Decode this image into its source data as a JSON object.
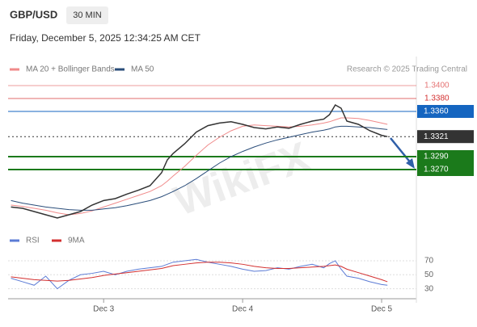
{
  "header": {
    "symbol": "GBP/USD",
    "timeframe": "30 MIN",
    "datetime": "Friday, December 5, 2025 12:34:25 AM CET",
    "source": "Research © 2025 Trading Central",
    "watermark": "WikiFX"
  },
  "chart_data": [
    {
      "type": "line",
      "x": [
        8,
        10,
        12,
        14,
        16,
        18,
        20,
        22,
        24,
        26,
        28,
        30,
        32,
        34,
        35,
        36,
        38,
        40,
        42,
        44,
        46,
        48,
        50,
        52,
        54,
        56,
        58,
        60,
        62,
        63,
        64,
        65,
        66,
        68,
        70,
        72,
        73
      ],
      "close": [
        1.3212,
        1.321,
        1.3205,
        1.32,
        1.3195,
        1.32,
        1.3205,
        1.3215,
        1.3222,
        1.3225,
        1.3232,
        1.3238,
        1.3245,
        1.3265,
        1.3285,
        1.3295,
        1.331,
        1.3328,
        1.3338,
        1.3342,
        1.3344,
        1.334,
        1.3335,
        1.3333,
        1.3336,
        1.3334,
        1.334,
        1.3345,
        1.3348,
        1.3355,
        1.337,
        1.3365,
        1.3345,
        1.334,
        1.333,
        1.3323,
        1.3321
      ],
      "close_color": "#333333",
      "series": [
        {
          "name": "MA 20 + Bollinger Bands",
          "color": "#f08a8a",
          "values": [
            1.3215,
            1.3213,
            1.321,
            1.3207,
            1.3203,
            1.32,
            1.3202,
            1.3206,
            1.3212,
            1.3218,
            1.3224,
            1.323,
            1.3236,
            1.3245,
            1.3252,
            1.326,
            1.3275,
            1.3292,
            1.3308,
            1.332,
            1.333,
            1.3337,
            1.3339,
            1.3338,
            1.3337,
            1.3336,
            1.3337,
            1.3339,
            1.3342,
            1.3344,
            1.3347,
            1.335,
            1.335,
            1.3349,
            1.3346,
            1.3342,
            1.334
          ]
        },
        {
          "name": "MA 50",
          "color": "#2a4d7a",
          "values": [
            1.3222,
            1.3218,
            1.3215,
            1.3212,
            1.321,
            1.3208,
            1.3207,
            1.3207,
            1.3209,
            1.3211,
            1.3214,
            1.3218,
            1.3222,
            1.3228,
            1.3232,
            1.3236,
            1.3245,
            1.3256,
            1.3268,
            1.328,
            1.329,
            1.3298,
            1.3305,
            1.3311,
            1.3316,
            1.332,
            1.3324,
            1.3328,
            1.3331,
            1.3333,
            1.3336,
            1.3337,
            1.3337,
            1.3336,
            1.3335,
            1.3333,
            1.3332
          ]
        }
      ],
      "xlim": [
        7.5,
        78
      ],
      "ylim": [
        1.3155,
        1.3445
      ],
      "levels": [
        {
          "value": 1.34,
          "label": "1.3400",
          "color": "#e57373",
          "style": "text",
          "width": 1
        },
        {
          "value": 1.338,
          "label": "1.3380",
          "color": "#d32f2f",
          "style": "text",
          "width": 1
        },
        {
          "value": 1.336,
          "label": "1.3360",
          "color": "#1565c0",
          "style": "box",
          "width": 1
        },
        {
          "value": 1.3321,
          "label": "1.3321",
          "color": "#333333",
          "style": "dotted",
          "width": 1
        },
        {
          "value": 1.329,
          "label": "1.3290",
          "color": "#1b7a1b",
          "style": "box",
          "width": 2
        },
        {
          "value": 1.327,
          "label": "1.3270",
          "color": "#1b7a1b",
          "style": "box",
          "width": 2
        }
      ]
    },
    {
      "type": "line",
      "x": [
        8,
        10,
        12,
        14,
        16,
        18,
        20,
        22,
        24,
        26,
        28,
        30,
        32,
        34,
        35,
        36,
        38,
        40,
        42,
        44,
        46,
        48,
        50,
        52,
        54,
        56,
        58,
        60,
        62,
        63,
        64,
        65,
        66,
        68,
        70,
        72,
        73
      ],
      "series": [
        {
          "name": "RSI",
          "color": "#5b7bd5",
          "values": [
            45,
            40,
            35,
            48,
            30,
            42,
            50,
            52,
            55,
            50,
            55,
            58,
            60,
            62,
            65,
            68,
            70,
            72,
            68,
            65,
            62,
            58,
            55,
            56,
            60,
            58,
            62,
            65,
            60,
            66,
            70,
            58,
            48,
            45,
            40,
            36,
            35
          ]
        },
        {
          "name": "9MA",
          "color": "#d32f2f",
          "values": [
            47,
            45,
            43,
            42,
            41,
            42,
            44,
            46,
            49,
            51,
            53,
            55,
            57,
            59,
            61,
            63,
            65,
            67,
            68,
            68,
            67,
            65,
            62,
            60,
            59,
            59,
            60,
            61,
            62,
            63,
            64,
            62,
            58,
            53,
            48,
            43,
            40
          ]
        }
      ],
      "xlim": [
        7.5,
        78
      ],
      "ylim": [
        18,
        85
      ],
      "yticks": [
        70,
        50,
        30
      ],
      "xticks": [
        {
          "value": 24,
          "label": "Dec 3"
        },
        {
          "value": 48,
          "label": "Dec 4"
        },
        {
          "value": 72,
          "label": "Dec 5"
        }
      ]
    }
  ]
}
